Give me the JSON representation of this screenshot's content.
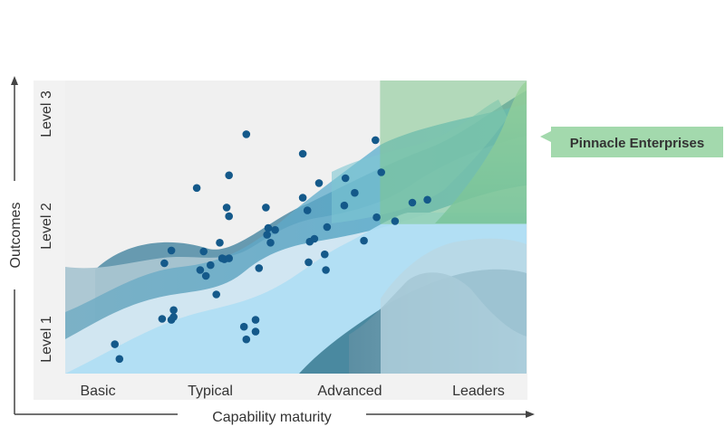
{
  "chart_data": {
    "type": "scatter",
    "title": "",
    "xlabel": "Capability maturity",
    "ylabel": "Outcomes",
    "x_categories": [
      "Basic",
      "Typical",
      "Advanced",
      "Leaders"
    ],
    "y_categories": [
      "Level 1",
      "Level 2",
      "Level 3"
    ],
    "xlim": [
      0,
      4
    ],
    "ylim": [
      0,
      3
    ],
    "grid": false,
    "legend": "none",
    "highlight": {
      "label": "Pinnacle Enterprises",
      "x_range": [
        2.73,
        4.0
      ],
      "y_range": [
        1.53,
        3.0
      ],
      "color": "#7fc68e"
    },
    "colors": {
      "points": "#14598a",
      "plot_background": "#f0f0f0",
      "leaders_band": "#a8d6eb",
      "callout_fill": "#a3d9ad",
      "axis": "#444444"
    },
    "series": [
      {
        "points": [
          [
            0.43,
            0.3
          ],
          [
            0.47,
            0.15
          ],
          [
            0.84,
            0.56
          ],
          [
            0.92,
            0.55
          ],
          [
            0.94,
            0.65
          ],
          [
            0.94,
            0.58
          ],
          [
            0.86,
            1.13
          ],
          [
            0.92,
            1.26
          ],
          [
            1.14,
            1.9
          ],
          [
            1.17,
            1.06
          ],
          [
            1.22,
            1.0
          ],
          [
            1.26,
            1.11
          ],
          [
            1.31,
            0.81
          ],
          [
            1.2,
            1.25
          ],
          [
            1.34,
            1.34
          ],
          [
            1.36,
            1.18
          ],
          [
            1.38,
            1.17
          ],
          [
            1.42,
            1.18
          ],
          [
            1.42,
            1.61
          ],
          [
            1.4,
            1.7
          ],
          [
            1.42,
            2.03
          ],
          [
            1.57,
            2.45
          ],
          [
            1.55,
            0.48
          ],
          [
            1.57,
            0.35
          ],
          [
            1.65,
            0.43
          ],
          [
            1.65,
            0.55
          ],
          [
            1.68,
            1.08
          ],
          [
            1.74,
            1.7
          ],
          [
            1.75,
            1.42
          ],
          [
            1.76,
            1.49
          ],
          [
            1.78,
            1.34
          ],
          [
            1.82,
            1.47
          ],
          [
            2.06,
            2.25
          ],
          [
            2.06,
            1.8
          ],
          [
            2.1,
            1.67
          ],
          [
            2.12,
            1.35
          ],
          [
            2.11,
            1.14
          ],
          [
            2.16,
            1.38
          ],
          [
            2.2,
            1.95
          ],
          [
            2.25,
            1.22
          ],
          [
            2.26,
            1.06
          ],
          [
            2.27,
            1.5
          ],
          [
            2.42,
            1.72
          ],
          [
            2.43,
            2.0
          ],
          [
            2.51,
            1.85
          ],
          [
            2.59,
            1.36
          ],
          [
            2.69,
            2.39
          ],
          [
            2.7,
            1.6
          ],
          [
            2.74,
            2.06
          ],
          [
            2.86,
            1.56
          ],
          [
            3.01,
            1.75
          ],
          [
            3.14,
            1.78
          ]
        ]
      }
    ]
  }
}
